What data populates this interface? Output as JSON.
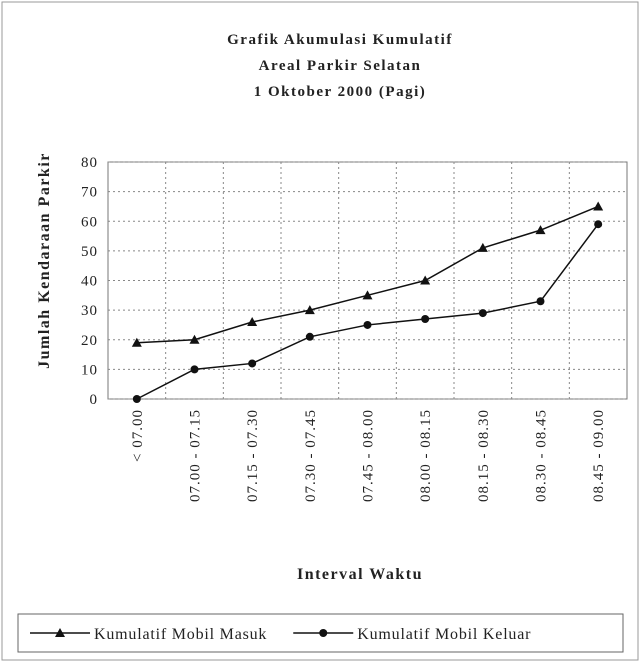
{
  "chart_data": {
    "type": "line",
    "title": [
      "Grafik Akumulasi Kumulatif",
      "Areal Parkir Selatan",
      "1 Oktober 2000 (Pagi)"
    ],
    "xlabel": "Interval Waktu",
    "ylabel": "Jumlah Kendaraan Parkir",
    "categories": [
      "< 07.00",
      "07.00 - 07.15",
      "07.15 - 07.30",
      "07.30 - 07.45",
      "07.45 - 08.00",
      "08.00 - 08.15",
      "08.15 - 08.30",
      "08.30 - 08.45",
      "08.45 - 09.00"
    ],
    "series": [
      {
        "name": "Kumulatif Mobil Masuk",
        "color": "#111111",
        "marker": "triangle",
        "values": [
          19,
          20,
          26,
          30,
          35,
          40,
          51,
          57,
          65
        ]
      },
      {
        "name": "Kumulatif Mobil Keluar",
        "color": "#111111",
        "marker": "circle",
        "values": [
          0,
          10,
          12,
          21,
          25,
          27,
          29,
          33,
          59
        ]
      }
    ],
    "ylim": [
      0,
      80
    ],
    "yticks": [
      0,
      10,
      20,
      30,
      40,
      50,
      60,
      70,
      80
    ],
    "grid": true,
    "legend": "bottom"
  }
}
